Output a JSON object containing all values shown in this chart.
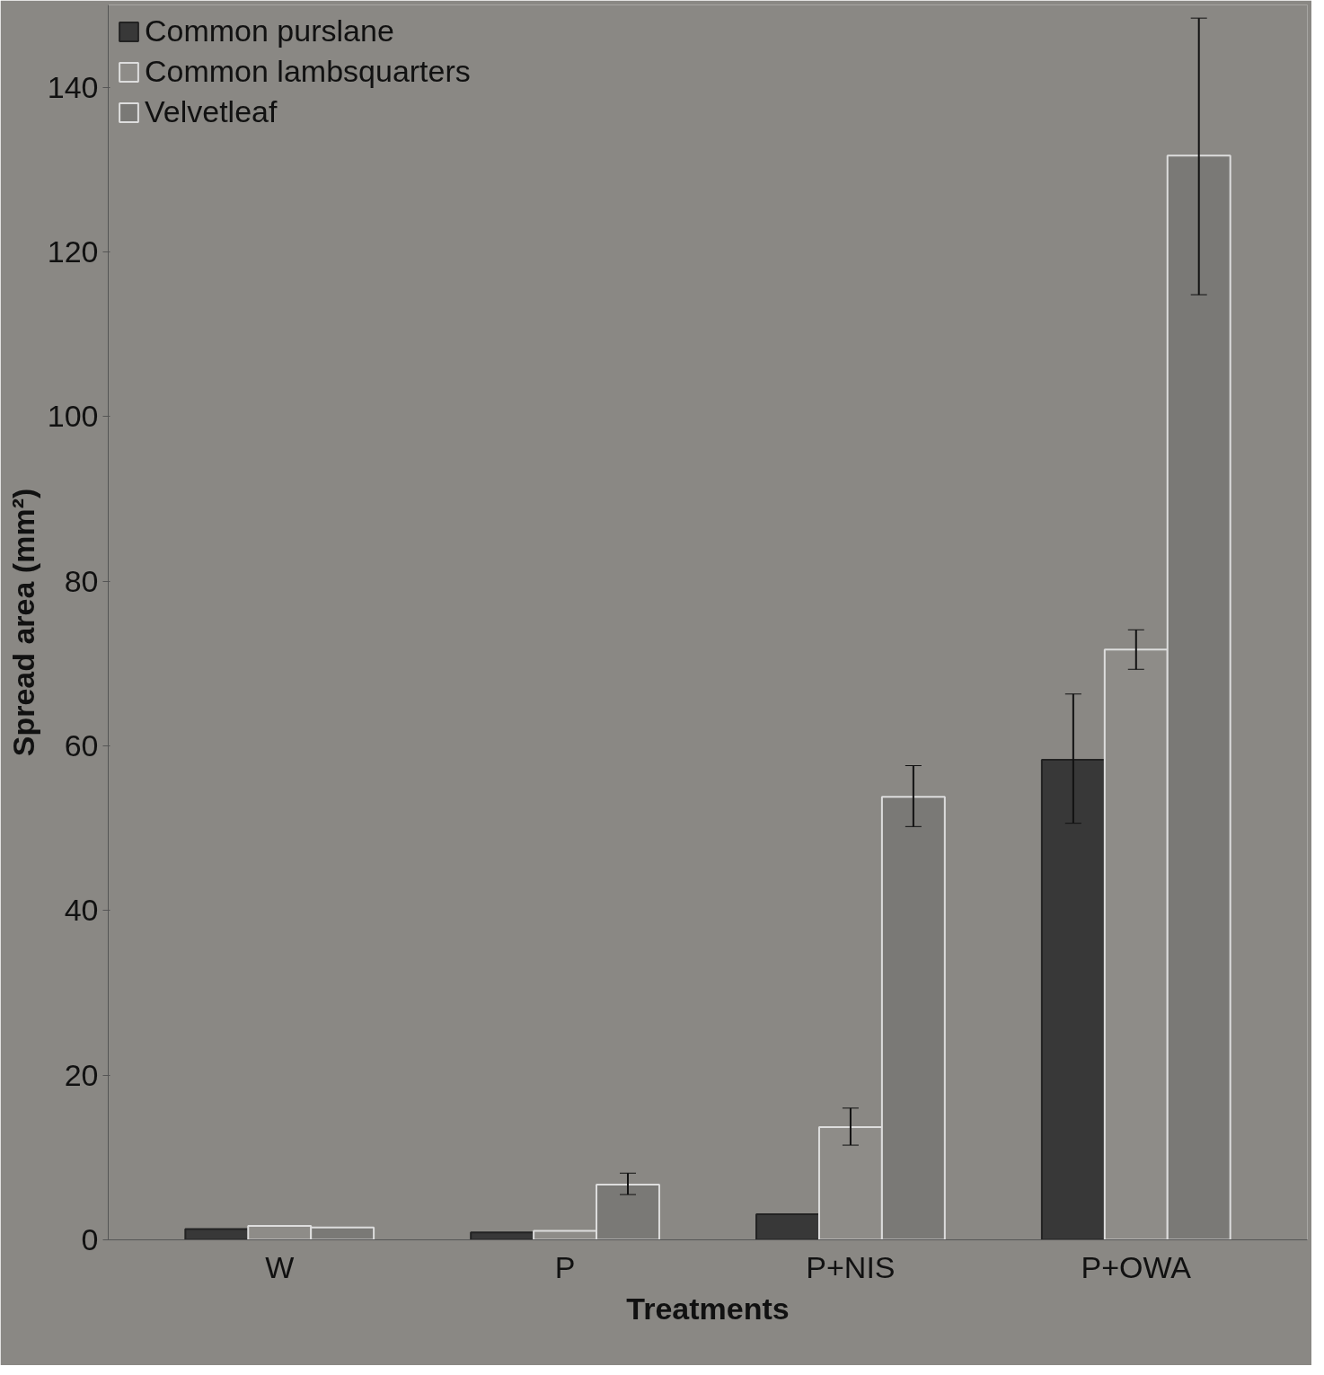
{
  "chart_data": {
    "type": "bar",
    "xlabel": "Treatments",
    "ylabel": "Spread area (mm²)",
    "categories": [
      "W",
      "P",
      "P+NIS",
      "P+OWA"
    ],
    "series": [
      {
        "name": "Common purslane",
        "color": "#383838",
        "values": [
          1.3,
          0.9,
          3.1,
          58.3
        ],
        "errors": [
          null,
          null,
          null,
          [
            50.6,
            66.3
          ]
        ]
      },
      {
        "name": "Common lambsquarters",
        "color": "#8e8c88",
        "values": [
          1.7,
          1.1,
          13.7,
          71.7
        ],
        "errors": [
          null,
          null,
          [
            11.5,
            16.0
          ],
          [
            69.3,
            74.1
          ]
        ]
      },
      {
        "name": "Velvetleaf",
        "color": "#7a7976",
        "values": [
          1.5,
          6.7,
          53.8,
          131.7
        ],
        "errors": [
          null,
          [
            5.5,
            8.1
          ],
          [
            50.2,
            57.6
          ],
          [
            114.8,
            148.4
          ]
        ]
      }
    ],
    "ylim": [
      0,
      150
    ],
    "yticks": [
      0,
      20,
      40,
      60,
      80,
      100,
      120,
      140
    ],
    "legend": "top left",
    "grid": false
  }
}
